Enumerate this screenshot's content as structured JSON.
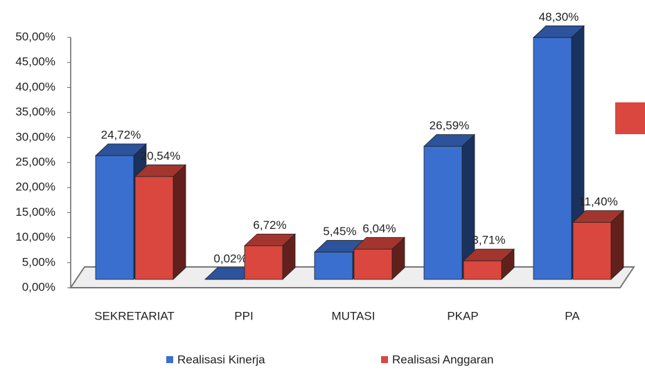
{
  "chart_data": {
    "type": "bar3d",
    "categories": [
      "SEKRETARIAT",
      "PPI",
      "MUTASI",
      "PKAP",
      "PA"
    ],
    "series": [
      {
        "name": "Realisasi Kinerja",
        "color": "#3a6fd0",
        "values": [
          24.72,
          0.02,
          5.45,
          26.59,
          48.3
        ],
        "value_labels": [
          "24,72%",
          "0,02%",
          "5,45%",
          "26,59%",
          "48,30%"
        ]
      },
      {
        "name": "Realisasi Anggaran",
        "color": "#d9473f",
        "values": [
          20.54,
          6.72,
          6.04,
          3.71,
          11.4
        ],
        "value_labels": [
          "20,54%",
          "6,72%",
          "6,04%",
          "3,71%",
          "11,40%"
        ]
      }
    ],
    "ylim": [
      0,
      50
    ],
    "yticks": [
      {
        "value": 0,
        "label": "0,00%"
      },
      {
        "value": 5,
        "label": "5,00%"
      },
      {
        "value": 10,
        "label": "10,00%"
      },
      {
        "value": 15,
        "label": "15,00%"
      },
      {
        "value": 20,
        "label": "20,00%"
      },
      {
        "value": 25,
        "label": "25,00%"
      },
      {
        "value": 30,
        "label": "30,00%"
      },
      {
        "value": 35,
        "label": "35,00%"
      },
      {
        "value": 40,
        "label": "40,00%"
      },
      {
        "value": 45,
        "label": "45,00%"
      },
      {
        "value": 50,
        "label": "50,00%"
      }
    ],
    "legend": "bottom"
  }
}
